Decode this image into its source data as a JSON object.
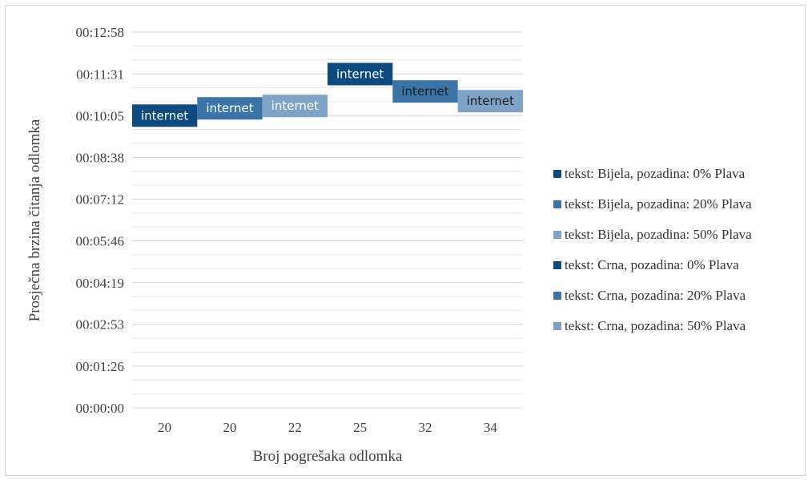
{
  "chart_data": {
    "type": "scatter",
    "xlabel": "Broj pogrešaka odlomka",
    "ylabel": "Prosječna brzina čitanja odlomka",
    "categories": [
      "20",
      "20",
      "22",
      "25",
      "32",
      "34"
    ],
    "y_ticks": [
      "00:00:00",
      "00:01:26",
      "00:02:53",
      "00:04:19",
      "00:05:46",
      "00:07:12",
      "00:08:38",
      "00:10:05",
      "00:11:31",
      "00:12:58"
    ],
    "ylim": [
      "00:00:00",
      "00:12:58"
    ],
    "grid": true,
    "legend_position": "right",
    "series": [
      {
        "name": "tekst: Bijela, pozadina: 0% Plava",
        "color": "#0d4a80",
        "text_color": "#ffffff",
        "category_index": 0,
        "value": "00:10:05",
        "label": "internet"
      },
      {
        "name": "tekst: Bijela, pozadina: 20% Plava",
        "color": "#3b74a6",
        "text_color": "#ffffff",
        "category_index": 1,
        "value": "00:10:20",
        "label": "internet"
      },
      {
        "name": "tekst: Bijela, pozadina: 50% Plava",
        "color": "#7fa3c7",
        "text_color": "#ffffff",
        "category_index": 2,
        "value": "00:10:25",
        "label": "internet"
      },
      {
        "name": "tekst: Crna, pozadina: 0% Plava",
        "color": "#0d4a80",
        "text_color": "#ffffff",
        "category_index": 3,
        "value": "00:11:31",
        "label": "internet"
      },
      {
        "name": "tekst: Crna, pozadina: 20% Plava",
        "color": "#3b74a6",
        "text_color": "#1a1a1a",
        "category_index": 4,
        "value": "00:10:55",
        "label": "internet"
      },
      {
        "name": "tekst: Crna, pozadina: 50% Plava",
        "color": "#7fa3c7",
        "text_color": "#1a1a1a",
        "category_index": 5,
        "value": "00:10:35",
        "label": "internet"
      }
    ]
  }
}
